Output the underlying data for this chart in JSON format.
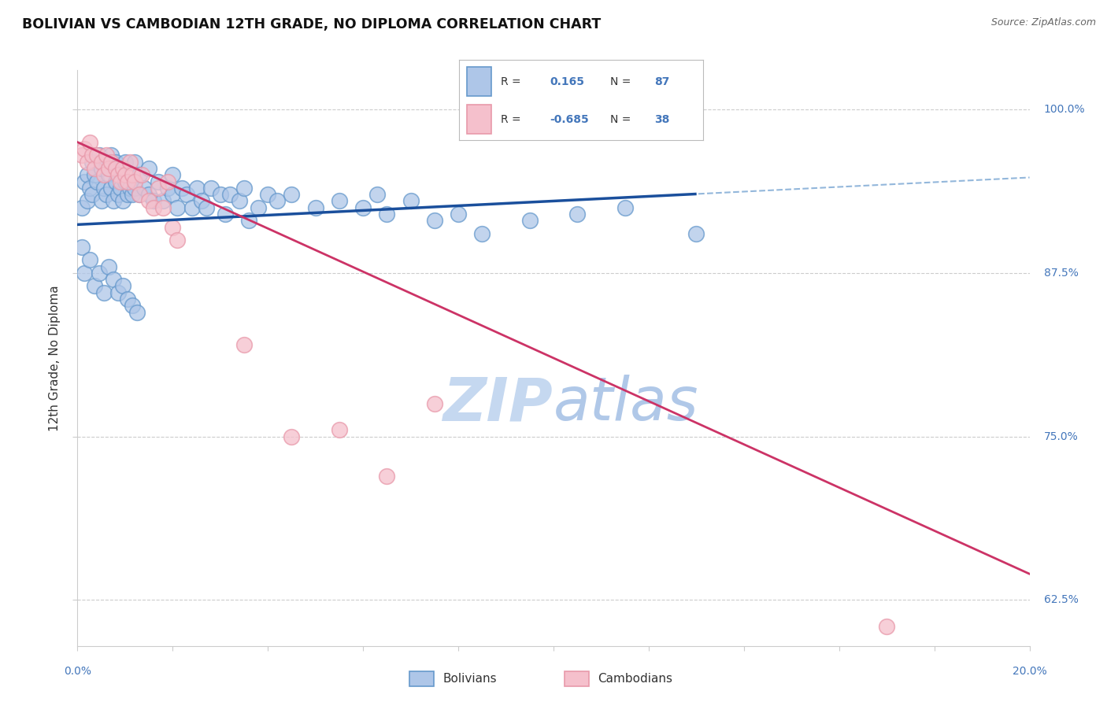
{
  "title": "BOLIVIAN VS CAMBODIAN 12TH GRADE, NO DIPLOMA CORRELATION CHART",
  "source": "Source: ZipAtlas.com",
  "ylabel": "12th Grade, No Diploma",
  "yticks": [
    62.5,
    75.0,
    87.5,
    100.0
  ],
  "ytick_labels": [
    "62.5%",
    "75.0%",
    "87.5%",
    "100.0%"
  ],
  "xmin": 0.0,
  "xmax": 20.0,
  "ymin": 59.0,
  "ymax": 103.0,
  "blue_color": "#6699cc",
  "blue_fill": "#aec6e8",
  "blue_line": "#1a4f9c",
  "pink_color": "#e899aa",
  "pink_fill": "#f5c0cc",
  "pink_line": "#cc3366",
  "axis_color": "#4477bb",
  "watermark_zip_color": "#c5d8f0",
  "watermark_atlas_color": "#b0c8e8",
  "blue_line_slope": 0.18,
  "blue_line_intercept": 91.2,
  "pink_line_slope": -1.65,
  "pink_line_intercept": 97.5,
  "bolivian_x": [
    0.1,
    0.15,
    0.2,
    0.2,
    0.25,
    0.3,
    0.3,
    0.35,
    0.4,
    0.45,
    0.5,
    0.5,
    0.55,
    0.6,
    0.6,
    0.65,
    0.7,
    0.7,
    0.75,
    0.8,
    0.8,
    0.85,
    0.9,
    0.9,
    0.95,
    1.0,
    1.0,
    1.05,
    1.1,
    1.15,
    1.2,
    1.2,
    1.3,
    1.3,
    1.4,
    1.5,
    1.5,
    1.6,
    1.7,
    1.8,
    1.9,
    2.0,
    2.0,
    2.1,
    2.2,
    2.3,
    2.4,
    2.5,
    2.6,
    2.7,
    2.8,
    3.0,
    3.1,
    3.2,
    3.4,
    3.5,
    3.6,
    3.8,
    4.0,
    4.2,
    4.5,
    5.0,
    5.5,
    6.0,
    6.3,
    6.5,
    7.0,
    7.5,
    8.0,
    8.5,
    9.5,
    10.5,
    11.5,
    13.0,
    0.1,
    0.15,
    0.25,
    0.35,
    0.45,
    0.55,
    0.65,
    0.75,
    0.85,
    0.95,
    1.05,
    1.15,
    1.25
  ],
  "bolivian_y": [
    92.5,
    94.5,
    93.0,
    95.0,
    94.0,
    93.5,
    96.0,
    95.0,
    94.5,
    96.5,
    93.0,
    95.5,
    94.0,
    93.5,
    96.0,
    95.0,
    94.0,
    96.5,
    93.0,
    94.5,
    96.0,
    93.5,
    94.0,
    95.5,
    93.0,
    94.5,
    96.0,
    93.5,
    94.0,
    93.5,
    94.0,
    96.0,
    93.5,
    95.0,
    94.0,
    93.5,
    95.5,
    93.0,
    94.5,
    93.0,
    94.0,
    93.5,
    95.0,
    92.5,
    94.0,
    93.5,
    92.5,
    94.0,
    93.0,
    92.5,
    94.0,
    93.5,
    92.0,
    93.5,
    93.0,
    94.0,
    91.5,
    92.5,
    93.5,
    93.0,
    93.5,
    92.5,
    93.0,
    92.5,
    93.5,
    92.0,
    93.0,
    91.5,
    92.0,
    90.5,
    91.5,
    92.0,
    92.5,
    90.5,
    89.5,
    87.5,
    88.5,
    86.5,
    87.5,
    86.0,
    88.0,
    87.0,
    86.0,
    86.5,
    85.5,
    85.0,
    84.5
  ],
  "cambodian_x": [
    0.1,
    0.15,
    0.2,
    0.25,
    0.3,
    0.35,
    0.4,
    0.5,
    0.55,
    0.6,
    0.65,
    0.7,
    0.8,
    0.85,
    0.9,
    0.95,
    1.0,
    1.05,
    1.1,
    1.15,
    1.2,
    1.3,
    1.35,
    1.5,
    1.6,
    1.7,
    1.8,
    1.9,
    2.0,
    2.1,
    3.5,
    4.5,
    5.5,
    6.5,
    7.5,
    17.0
  ],
  "cambodian_y": [
    96.5,
    97.0,
    96.0,
    97.5,
    96.5,
    95.5,
    96.5,
    96.0,
    95.0,
    96.5,
    95.5,
    96.0,
    95.5,
    95.0,
    94.5,
    95.5,
    95.0,
    94.5,
    96.0,
    95.0,
    94.5,
    93.5,
    95.0,
    93.0,
    92.5,
    94.0,
    92.5,
    94.5,
    91.0,
    90.0,
    82.0,
    75.0,
    75.5,
    72.0,
    77.5,
    60.5
  ]
}
